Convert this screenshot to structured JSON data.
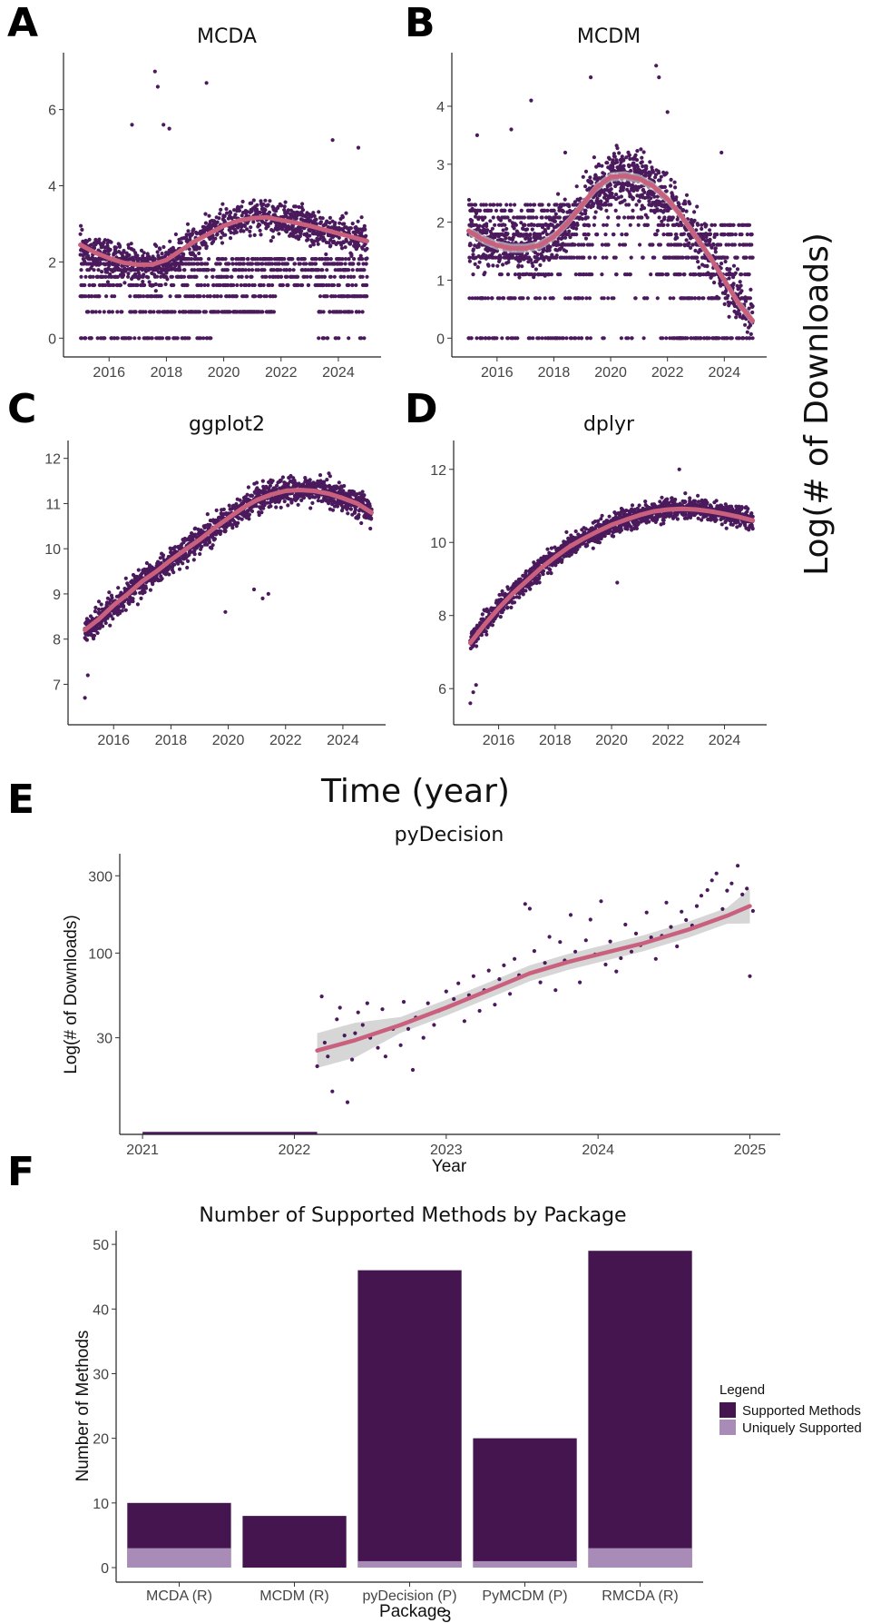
{
  "panel_labels": {
    "A": "A",
    "B": "B",
    "C": "C",
    "D": "D",
    "E": "E",
    "F": "F"
  },
  "shared_y_label": "Log(# of Downloads)",
  "shared_x_label": "Time (year)",
  "page_number": "3",
  "colors": {
    "points": "#4a1a5c",
    "smooth": "#c9607e",
    "band": "#c8c8c8",
    "supported": "#45154f",
    "unique": "#a98bb8"
  },
  "chart_data": [
    {
      "id": "A",
      "type": "scatter",
      "title": "MCDA",
      "xlim": [
        2015.0,
        2025.0
      ],
      "ylim": [
        0,
        7
      ],
      "xticks": [
        2016,
        2018,
        2020,
        2022,
        2024
      ],
      "yticks": [
        0,
        2,
        4,
        6
      ],
      "smooth": [
        [
          2015.0,
          2.45
        ],
        [
          2015.5,
          2.25
        ],
        [
          2016.0,
          2.1
        ],
        [
          2016.5,
          1.98
        ],
        [
          2017.0,
          1.93
        ],
        [
          2017.5,
          1.93
        ],
        [
          2018.0,
          2.05
        ],
        [
          2018.5,
          2.3
        ],
        [
          2019.0,
          2.55
        ],
        [
          2019.5,
          2.75
        ],
        [
          2020.0,
          2.95
        ],
        [
          2020.5,
          3.08
        ],
        [
          2021.0,
          3.15
        ],
        [
          2021.5,
          3.17
        ],
        [
          2022.0,
          3.1
        ],
        [
          2022.5,
          3.03
        ],
        [
          2023.0,
          2.95
        ],
        [
          2023.5,
          2.85
        ],
        [
          2024.0,
          2.75
        ],
        [
          2024.5,
          2.65
        ],
        [
          2025.0,
          2.55
        ]
      ],
      "trend_range": [
        2015.0,
        2025.0,
        1.9,
        3.2
      ],
      "level_set": [
        0,
        0.69,
        1.1,
        1.39,
        1.61,
        1.79,
        1.95,
        2.08
      ],
      "outliers": [
        [
          2016.8,
          5.6
        ],
        [
          2017.6,
          7.0
        ],
        [
          2017.7,
          6.6
        ],
        [
          2017.9,
          5.6
        ],
        [
          2018.1,
          5.5
        ],
        [
          2019.4,
          6.7
        ],
        [
          2023.8,
          5.2
        ],
        [
          2024.7,
          5.0
        ]
      ],
      "show_band": false
    },
    {
      "id": "B",
      "type": "scatter",
      "title": "MCDM",
      "xlim": [
        2015.0,
        2025.0
      ],
      "ylim": [
        0,
        4.6
      ],
      "xticks": [
        2016,
        2018,
        2020,
        2022,
        2024
      ],
      "yticks": [
        0,
        1,
        2,
        3,
        4
      ],
      "smooth": [
        [
          2015.0,
          1.85
        ],
        [
          2015.5,
          1.7
        ],
        [
          2016.0,
          1.6
        ],
        [
          2016.5,
          1.55
        ],
        [
          2017.0,
          1.55
        ],
        [
          2017.5,
          1.6
        ],
        [
          2018.0,
          1.75
        ],
        [
          2018.5,
          2.0
        ],
        [
          2019.0,
          2.3
        ],
        [
          2019.5,
          2.6
        ],
        [
          2020.0,
          2.78
        ],
        [
          2020.5,
          2.8
        ],
        [
          2021.0,
          2.75
        ],
        [
          2021.5,
          2.62
        ],
        [
          2022.0,
          2.4
        ],
        [
          2022.5,
          2.1
        ],
        [
          2023.0,
          1.75
        ],
        [
          2023.5,
          1.4
        ],
        [
          2024.0,
          1.0
        ],
        [
          2024.5,
          0.6
        ],
        [
          2025.0,
          0.3
        ]
      ],
      "trend_range": [
        2015.0,
        2025.0,
        0.3,
        2.8
      ],
      "level_set": [
        0,
        0.69,
        1.1,
        1.39,
        1.61,
        1.79,
        1.95,
        2.08,
        2.2,
        2.3
      ],
      "outliers": [
        [
          2015.3,
          3.5
        ],
        [
          2016.5,
          3.6
        ],
        [
          2017.2,
          4.1
        ],
        [
          2018.4,
          3.2
        ],
        [
          2019.3,
          4.5
        ],
        [
          2021.6,
          4.7
        ],
        [
          2021.7,
          4.5
        ],
        [
          2022.0,
          3.9
        ],
        [
          2023.9,
          3.2
        ]
      ],
      "show_band": true
    },
    {
      "id": "C",
      "type": "scatter",
      "title": "ggplot2",
      "xlim": [
        2015.0,
        2025.0
      ],
      "ylim": [
        6.5,
        12.0
      ],
      "xticks": [
        2016,
        2018,
        2020,
        2022,
        2024
      ],
      "yticks": [
        7,
        8,
        9,
        10,
        11,
        12
      ],
      "smooth": [
        [
          2015.0,
          8.2
        ],
        [
          2015.5,
          8.45
        ],
        [
          2016.0,
          8.75
        ],
        [
          2016.5,
          9.0
        ],
        [
          2017.0,
          9.28
        ],
        [
          2017.5,
          9.5
        ],
        [
          2018.0,
          9.75
        ],
        [
          2018.5,
          9.98
        ],
        [
          2019.0,
          10.2
        ],
        [
          2019.5,
          10.45
        ],
        [
          2020.0,
          10.68
        ],
        [
          2020.5,
          10.9
        ],
        [
          2021.0,
          11.08
        ],
        [
          2021.5,
          11.2
        ],
        [
          2022.0,
          11.28
        ],
        [
          2022.5,
          11.3
        ],
        [
          2023.0,
          11.28
        ],
        [
          2023.5,
          11.22
        ],
        [
          2024.0,
          11.12
        ],
        [
          2024.5,
          11.0
        ],
        [
          2025.0,
          10.8
        ]
      ],
      "trend_range": [
        2015.0,
        2025.0,
        8.2,
        11.3
      ],
      "outliers": [
        [
          2015.0,
          6.7
        ],
        [
          2015.1,
          7.2
        ],
        [
          2019.9,
          8.6
        ],
        [
          2020.9,
          9.1
        ],
        [
          2021.2,
          8.9
        ],
        [
          2021.4,
          9.0
        ]
      ],
      "show_band": false
    },
    {
      "id": "D",
      "type": "scatter",
      "title": "dplyr",
      "xlim": [
        2015.0,
        2025.0
      ],
      "ylim": [
        5.5,
        12.3
      ],
      "xticks": [
        2016,
        2018,
        2020,
        2022,
        2024
      ],
      "yticks": [
        6,
        8,
        10,
        12
      ],
      "smooth": [
        [
          2015.0,
          7.25
        ],
        [
          2015.5,
          7.75
        ],
        [
          2016.0,
          8.2
        ],
        [
          2016.5,
          8.6
        ],
        [
          2017.0,
          8.95
        ],
        [
          2017.5,
          9.3
        ],
        [
          2018.0,
          9.6
        ],
        [
          2018.5,
          9.88
        ],
        [
          2019.0,
          10.1
        ],
        [
          2019.5,
          10.3
        ],
        [
          2020.0,
          10.48
        ],
        [
          2020.5,
          10.62
        ],
        [
          2021.0,
          10.75
        ],
        [
          2021.5,
          10.85
        ],
        [
          2022.0,
          10.9
        ],
        [
          2022.5,
          10.92
        ],
        [
          2023.0,
          10.9
        ],
        [
          2023.5,
          10.85
        ],
        [
          2024.0,
          10.78
        ],
        [
          2024.5,
          10.7
        ],
        [
          2025.0,
          10.6
        ]
      ],
      "trend_range": [
        2015.0,
        2025.0,
        7.25,
        10.92
      ],
      "outliers": [
        [
          2015.0,
          5.6
        ],
        [
          2015.1,
          5.9
        ],
        [
          2015.2,
          6.1
        ],
        [
          2020.2,
          8.9
        ],
        [
          2022.4,
          12.0
        ]
      ],
      "show_band": false
    },
    {
      "id": "E",
      "type": "scatter",
      "title": "pyDecision",
      "xlabel": "Year",
      "ylabel": "Log(# of Downloads)",
      "xlim": [
        2020.85,
        2025.2
      ],
      "ylim_log": [
        8,
        400
      ],
      "xticks": [
        2021,
        2022,
        2023,
        2024,
        2025
      ],
      "yticks": [
        30,
        100,
        300
      ],
      "scale": "log10",
      "baseline_segment": [
        2021.0,
        2022.15
      ],
      "smooth": [
        [
          2022.15,
          25
        ],
        [
          2022.4,
          29
        ],
        [
          2022.7,
          36
        ],
        [
          2023.0,
          46
        ],
        [
          2023.3,
          60
        ],
        [
          2023.55,
          75
        ],
        [
          2023.8,
          88
        ],
        [
          2024.0,
          98
        ],
        [
          2024.3,
          115
        ],
        [
          2024.6,
          140
        ],
        [
          2024.85,
          170
        ],
        [
          2025.0,
          195
        ]
      ],
      "points": [
        [
          2022.15,
          20
        ],
        [
          2022.18,
          54
        ],
        [
          2022.2,
          28
        ],
        [
          2022.22,
          23
        ],
        [
          2022.25,
          14
        ],
        [
          2022.28,
          39
        ],
        [
          2022.3,
          46
        ],
        [
          2022.33,
          31
        ],
        [
          2022.35,
          12
        ],
        [
          2022.38,
          22
        ],
        [
          2022.4,
          32
        ],
        [
          2022.42,
          43
        ],
        [
          2022.45,
          36
        ],
        [
          2022.48,
          49
        ],
        [
          2022.5,
          30
        ],
        [
          2022.55,
          26
        ],
        [
          2022.58,
          45
        ],
        [
          2022.6,
          23
        ],
        [
          2022.65,
          34
        ],
        [
          2022.7,
          27
        ],
        [
          2022.72,
          50
        ],
        [
          2022.75,
          34
        ],
        [
          2022.78,
          19
        ],
        [
          2022.8,
          40
        ],
        [
          2022.85,
          30
        ],
        [
          2022.88,
          49
        ],
        [
          2022.92,
          36
        ],
        [
          2022.95,
          44
        ],
        [
          2023.0,
          58
        ],
        [
          2023.05,
          52
        ],
        [
          2023.08,
          65
        ],
        [
          2023.12,
          38
        ],
        [
          2023.15,
          55
        ],
        [
          2023.18,
          72
        ],
        [
          2023.22,
          44
        ],
        [
          2023.25,
          59
        ],
        [
          2023.28,
          78
        ],
        [
          2023.32,
          48
        ],
        [
          2023.35,
          69
        ],
        [
          2023.38,
          84
        ],
        [
          2023.42,
          56
        ],
        [
          2023.45,
          92
        ],
        [
          2023.48,
          73
        ],
        [
          2023.52,
          201
        ],
        [
          2023.55,
          188
        ],
        [
          2023.58,
          103
        ],
        [
          2023.62,
          66
        ],
        [
          2023.65,
          87
        ],
        [
          2023.68,
          126
        ],
        [
          2023.72,
          59
        ],
        [
          2023.75,
          117
        ],
        [
          2023.78,
          90
        ],
        [
          2023.82,
          172
        ],
        [
          2023.85,
          102
        ],
        [
          2023.88,
          66
        ],
        [
          2023.92,
          120
        ],
        [
          2023.95,
          161
        ],
        [
          2023.98,
          98
        ],
        [
          2024.02,
          209
        ],
        [
          2024.05,
          85
        ],
        [
          2024.08,
          118
        ],
        [
          2024.12,
          77
        ],
        [
          2024.15,
          93
        ],
        [
          2024.18,
          150
        ],
        [
          2024.22,
          102
        ],
        [
          2024.25,
          132
        ],
        [
          2024.28,
          112
        ],
        [
          2024.32,
          178
        ],
        [
          2024.35,
          125
        ],
        [
          2024.38,
          92
        ],
        [
          2024.42,
          128
        ],
        [
          2024.45,
          205
        ],
        [
          2024.48,
          145
        ],
        [
          2024.52,
          110
        ],
        [
          2024.55,
          180
        ],
        [
          2024.58,
          160
        ],
        [
          2024.62,
          148
        ],
        [
          2024.65,
          195
        ],
        [
          2024.68,
          226
        ],
        [
          2024.72,
          245
        ],
        [
          2024.75,
          281
        ],
        [
          2024.78,
          310
        ],
        [
          2024.82,
          187
        ],
        [
          2024.85,
          243
        ],
        [
          2024.88,
          269
        ],
        [
          2024.92,
          346
        ],
        [
          2024.95,
          230
        ],
        [
          2024.98,
          250
        ],
        [
          2025.0,
          72
        ],
        [
          2025.02,
          182
        ]
      ],
      "show_band": true
    },
    {
      "id": "F",
      "type": "bar",
      "title": "Number of Supported Methods by Package",
      "xlabel": "Package",
      "ylabel": "Number of Methods",
      "categories": [
        "MCDA (R)",
        "MCDM (R)",
        "pyDecision (P)",
        "PyMCDM (P)",
        "RMCDA (R)"
      ],
      "series": [
        {
          "name": "Supported Methods",
          "values": [
            10,
            8,
            46,
            20,
            49
          ]
        },
        {
          "name": "Uniquely Supported",
          "values": [
            3,
            0,
            1,
            1,
            3
          ]
        }
      ],
      "ylim": [
        0,
        51
      ],
      "yticks": [
        0,
        10,
        20,
        30,
        40,
        50
      ],
      "legend_title": "Legend",
      "legend_position": "right"
    }
  ]
}
